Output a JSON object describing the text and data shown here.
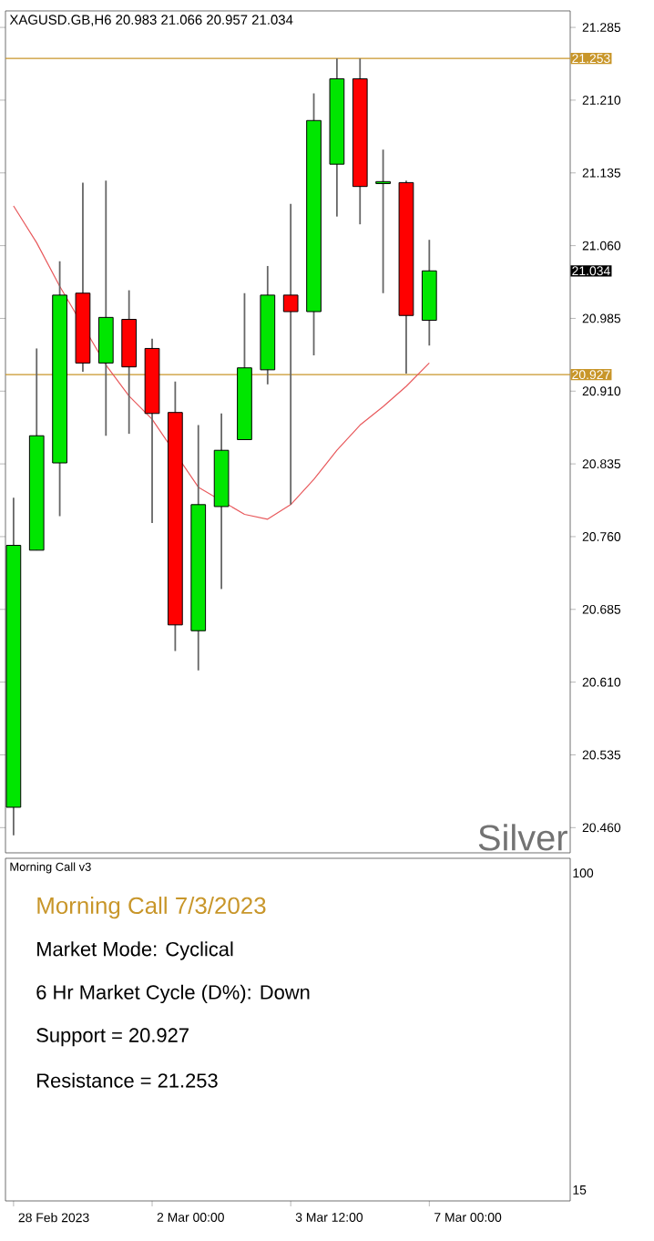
{
  "chart_data": [
    {
      "type": "candlestick",
      "title": "XAGUSD.GB,H6 20.983 21.066 20.957 21.034",
      "categories": [
        null,
        null,
        null,
        null,
        null,
        null,
        null,
        null,
        null,
        null,
        null,
        null,
        null,
        null,
        null,
        null,
        null,
        null,
        null
      ],
      "ohlc": [
        [
          20.481,
          20.8,
          20.452,
          20.751
        ],
        [
          20.746,
          20.954,
          20.746,
          20.864
        ],
        [
          20.836,
          21.044,
          20.781,
          21.009
        ],
        [
          21.011,
          21.125,
          20.93,
          20.939
        ],
        [
          20.939,
          21.127,
          20.864,
          20.986
        ],
        [
          20.984,
          21.014,
          20.866,
          20.935
        ],
        [
          20.954,
          20.964,
          20.774,
          20.887
        ],
        [
          20.888,
          20.92,
          20.642,
          20.669
        ],
        [
          20.663,
          20.875,
          20.622,
          20.793
        ],
        [
          20.791,
          20.887,
          20.706,
          20.849
        ],
        [
          20.86,
          21.011,
          20.86,
          20.934
        ],
        [
          20.932,
          21.039,
          20.917,
          21.009
        ],
        [
          21.009,
          21.103,
          20.793,
          20.992
        ],
        [
          20.992,
          21.217,
          20.947,
          21.189
        ],
        [
          21.144,
          21.253,
          21.09,
          21.232
        ],
        [
          21.232,
          21.253,
          21.082,
          21.121
        ],
        [
          21.124,
          21.159,
          21.011,
          21.126
        ],
        [
          21.125,
          21.127,
          20.928,
          20.988
        ],
        [
          20.983,
          21.066,
          20.957,
          21.034
        ]
      ],
      "colors": [
        "#00e600",
        "#00e600",
        "#00e600",
        "#ff0000",
        "#00e600",
        "#ff0000",
        "#ff0000",
        "#ff0000",
        "#00e600",
        "#00e600",
        "#00e600",
        "#00e600",
        "#ff0000",
        "#00e600",
        "#00e600",
        "#ff0000",
        "#00e600",
        "#ff0000",
        "#00e600"
      ],
      "series": [
        {
          "type": "line",
          "color": "#e8595c",
          "values": [
            21.101,
            21.063,
            21.018,
            null,
            20.937,
            20.905,
            20.881,
            null,
            20.811,
            null,
            20.783,
            20.778,
            20.793,
            20.819,
            20.849,
            20.875,
            20.894,
            20.915,
            20.939
          ]
        }
      ],
      "ylim": [
        20.434,
        21.302
      ],
      "yticks": [
        {
          "value": 20.46,
          "label": "20.460"
        },
        {
          "value": 20.535,
          "label": "20.535"
        },
        {
          "value": 20.61,
          "label": "20.610"
        },
        {
          "value": 20.685,
          "label": "20.685"
        },
        {
          "value": 20.76,
          "label": "20.760"
        },
        {
          "value": 20.835,
          "label": "20.835"
        },
        {
          "value": 20.91,
          "label": "20.910"
        },
        {
          "value": 20.985,
          "label": "20.985"
        },
        {
          "value": 21.06,
          "label": "21.060"
        },
        {
          "value": 21.135,
          "label": "21.135"
        },
        {
          "value": 21.21,
          "label": "21.210"
        },
        {
          "value": 21.285,
          "label": "21.285"
        }
      ],
      "ref_lines": [
        {
          "axis": "y",
          "value": 21.253,
          "label": "21.253",
          "color": "#c8962a"
        },
        {
          "axis": "y",
          "value": 20.927,
          "label": "20.927",
          "color": "#c8962a"
        }
      ],
      "annotations": [
        "21.034",
        "Silver"
      ]
    },
    {
      "type": "other",
      "title": "Morning Call v3",
      "subtitle": "Morning Call 7/3/2023",
      "categories": [
        "28 Feb 2023",
        null,
        null,
        null,
        null,
        null,
        "2 Mar 00:00",
        null,
        null,
        null,
        null,
        null,
        "3 Mar 12:00",
        null,
        null,
        null,
        null,
        null,
        "7 Mar 00:00"
      ],
      "annotations": [
        "Market Mode: Cyclical",
        "6 Hr Market Cycle (D%): Down",
        "Support = 20.927",
        "Resistance = 21.253",
        "100",
        "15"
      ]
    }
  ]
}
